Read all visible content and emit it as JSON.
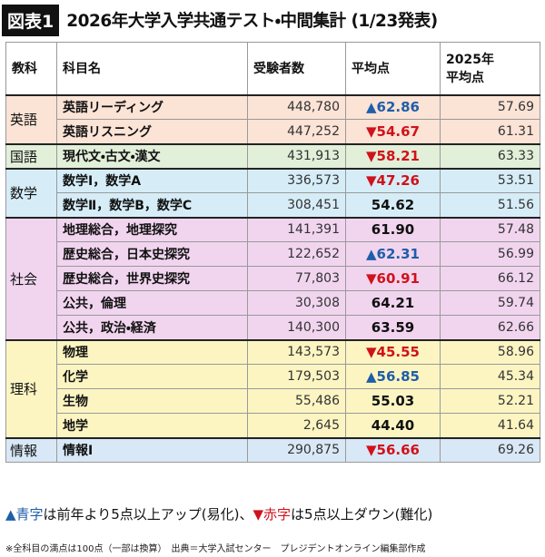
{
  "header": {
    "label": "図表1",
    "title": "2026年大学入学共通テスト・中間集計 (1/23発表)"
  },
  "table": {
    "columns": [
      "教科",
      "科目名",
      "受験者数",
      "平均点",
      [
        "2025年",
        "平均点"
      ]
    ],
    "groups": [
      {
        "subject": "英語",
        "color": "#fbe3d6",
        "rows": [
          {
            "name": "英語リーディング",
            "examinees": "448,780",
            "mark": "▲",
            "average": "62.86",
            "color": "#1f5ea8",
            "prev": "57.69"
          },
          {
            "name": "英語リスニング",
            "examinees": "447,252",
            "mark": "▼",
            "average": "54.67",
            "color": "#d0121b",
            "prev": "61.31"
          }
        ]
      },
      {
        "subject": "国語",
        "color": "#e2efd9",
        "rows": [
          {
            "name": "現代文・古文・漢文",
            "examinees": "431,913",
            "mark": "▼",
            "average": "58.21",
            "color": "#d0121b",
            "prev": "63.33"
          }
        ]
      },
      {
        "subject": "数学",
        "color": "#d6edf8",
        "rows": [
          {
            "name": "数学Ⅰ，数学A",
            "examinees": "336,573",
            "mark": "▼",
            "average": "47.26",
            "color": "#d0121b",
            "prev": "53.51"
          },
          {
            "name": "数学Ⅱ，数学B，数学C",
            "examinees": "308,451",
            "average": "54.62",
            "prev": "51.56"
          }
        ]
      },
      {
        "subject": "社会",
        "color": "#f1d5ef",
        "rows": [
          {
            "name": "地理総合，地理探究",
            "examinees": "141,391",
            "average": "61.90",
            "prev": "57.48"
          },
          {
            "name": "歴史総合，日本史探究",
            "examinees": "122,652",
            "mark": "▲",
            "average": "62.31",
            "color": "#1f5ea8",
            "prev": "56.99"
          },
          {
            "name": "歴史総合，世界史探究",
            "examinees": "77,803",
            "mark": "▼",
            "average": "60.91",
            "color": "#d0121b",
            "prev": "66.12"
          },
          {
            "name": "公共，倫理",
            "examinees": "30,308",
            "average": "64.21",
            "prev": "59.74"
          },
          {
            "name": "公共，政治・経済",
            "examinees": "140,300",
            "average": "63.59",
            "prev": "62.66"
          }
        ]
      },
      {
        "subject": "理科",
        "color": "#fcf5c2",
        "rows": [
          {
            "name": "物理",
            "examinees": "143,573",
            "mark": "▼",
            "average": "45.55",
            "color": "#d0121b",
            "prev": "58.96"
          },
          {
            "name": "化学",
            "examinees": "179,503",
            "mark": "▲",
            "average": "56.85",
            "color": "#1f5ea8",
            "prev": "45.34"
          },
          {
            "name": "生物",
            "examinees": "55,486",
            "average": "55.03",
            "prev": "52.21"
          },
          {
            "name": "地学",
            "examinees": "2,645",
            "average": "44.40",
            "prev": "41.64"
          }
        ]
      },
      {
        "subject": "情報",
        "color": "#d9e8f6",
        "rows": [
          {
            "name": "情報Ⅰ",
            "examinees": "290,875",
            "mark": "▼",
            "average": "56.66",
            "color": "#d0121b",
            "prev": "69.26"
          }
        ]
      }
    ]
  },
  "legend": [
    {
      "text": "▲青字",
      "color": "#1f5ea8"
    },
    {
      "text": "は前年より5点以上アップ(易化)、"
    },
    {
      "text": "▼赤字",
      "color": "#d0121b"
    },
    {
      "text": "は5点以上ダウン(難化)"
    }
  ],
  "note": "※全科目の満点は100点（一部は換算）　出典＝大学入試センター　プレジデントオンライン編集部作成"
}
